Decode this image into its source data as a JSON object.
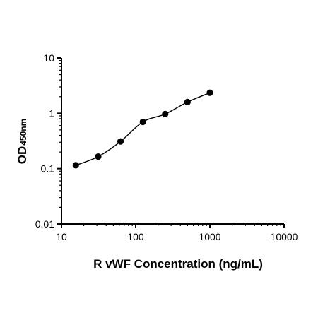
{
  "chart_data": {
    "type": "scatter",
    "xscale": "log",
    "yscale": "log",
    "xlim": [
      10,
      10000
    ],
    "ylim": [
      0.01,
      10
    ],
    "xticks": [
      "10",
      "100",
      "1000",
      "10000"
    ],
    "yticks": [
      "0.01",
      "0.1",
      "1",
      "10"
    ],
    "xlabel": "R vWF Concentration (ng/mL)",
    "ylabel_main": "OD",
    "ylabel_sub": "450nm",
    "points": {
      "x": [
        15.6,
        31.25,
        62.5,
        125,
        250,
        500,
        1000
      ],
      "y": [
        0.115,
        0.165,
        0.31,
        0.7,
        0.97,
        1.6,
        2.35
      ]
    },
    "fit_curve": "4-parameter logistic (smooth line through points)",
    "grid": false,
    "legend": "none"
  }
}
